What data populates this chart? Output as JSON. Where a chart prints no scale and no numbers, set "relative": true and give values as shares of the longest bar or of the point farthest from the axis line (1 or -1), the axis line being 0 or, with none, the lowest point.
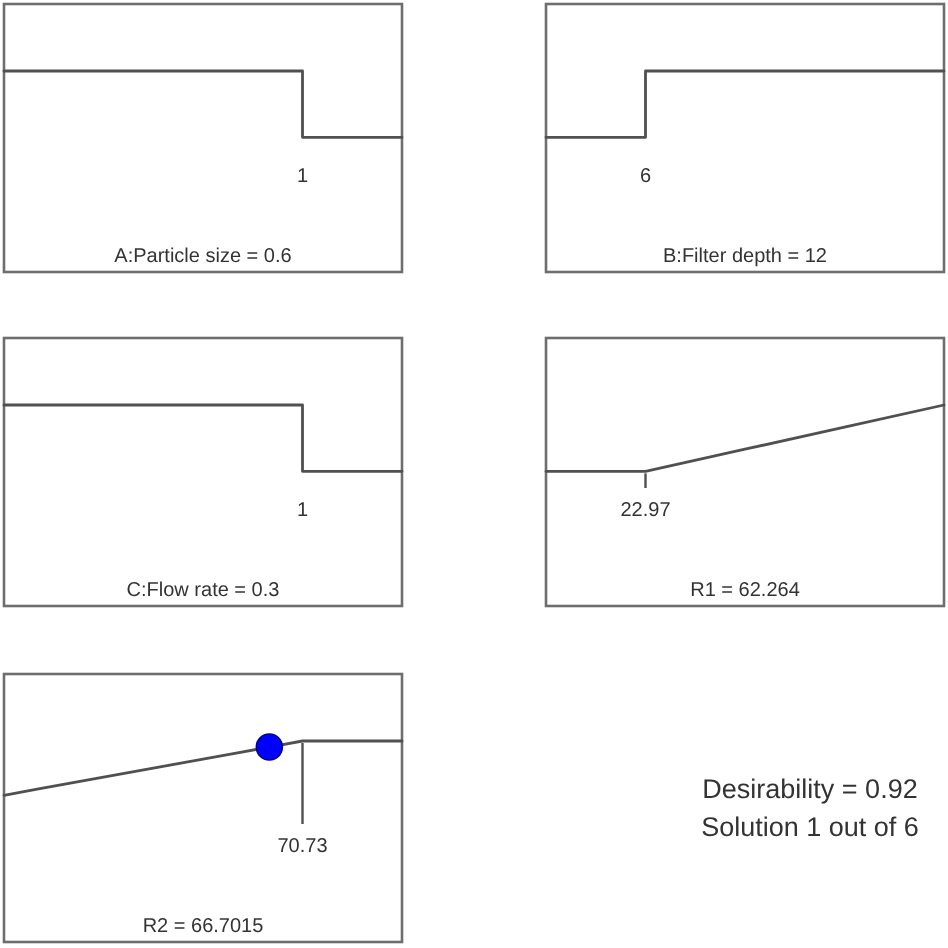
{
  "chart_data": [
    {
      "type": "step",
      "relative": true,
      "categories": [
        null,
        null,
        null,
        null,
        null
      ],
      "values": [
        1,
        1,
        1,
        0.67,
        0.67
      ],
      "color": "#505050",
      "xlabel": "A:Particle size = 0.6",
      "annotations": [
        "1"
      ]
    },
    {
      "type": "step",
      "relative": true,
      "categories": [
        null,
        null,
        null,
        null,
        null
      ],
      "values": [
        0.67,
        1,
        1,
        1,
        1
      ],
      "color": "#505050",
      "xlabel": "B:Filter depth = 12",
      "annotations": [
        "6"
      ]
    },
    {
      "type": "step",
      "relative": true,
      "categories": [
        null,
        null,
        null,
        null,
        null
      ],
      "values": [
        1,
        1,
        1,
        0.67,
        0.67
      ],
      "color": "#505050",
      "xlabel": "C:Flow rate = 0.3",
      "annotations": [
        "1"
      ]
    },
    {
      "type": "line",
      "relative": true,
      "categories": [
        null,
        null,
        null,
        null,
        null
      ],
      "values": [
        0.67,
        0.67,
        0.78,
        0.89,
        1
      ],
      "color": "#505050",
      "xlabel": "R1 = 62.264",
      "annotations": [
        "22.97"
      ]
    },
    {
      "type": "line",
      "relative": true,
      "categories": [
        null,
        null,
        null,
        null,
        null,
        null,
        null,
        null,
        null,
        null,
        null,
        null,
        null
      ],
      "values": [
        0.73,
        0.76,
        0.79,
        0.82,
        0.85,
        0.88,
        0.91,
        0.94,
        0.97,
        1,
        1,
        1,
        1
      ],
      "color": "#505050",
      "xlabel": "R2 = 66.7015",
      "annotations": [
        "70.73"
      ]
    },
    {
      "type": "other",
      "annotations": [
        "Desirability = 0.92",
        "Solution 1 out of 6"
      ]
    }
  ]
}
